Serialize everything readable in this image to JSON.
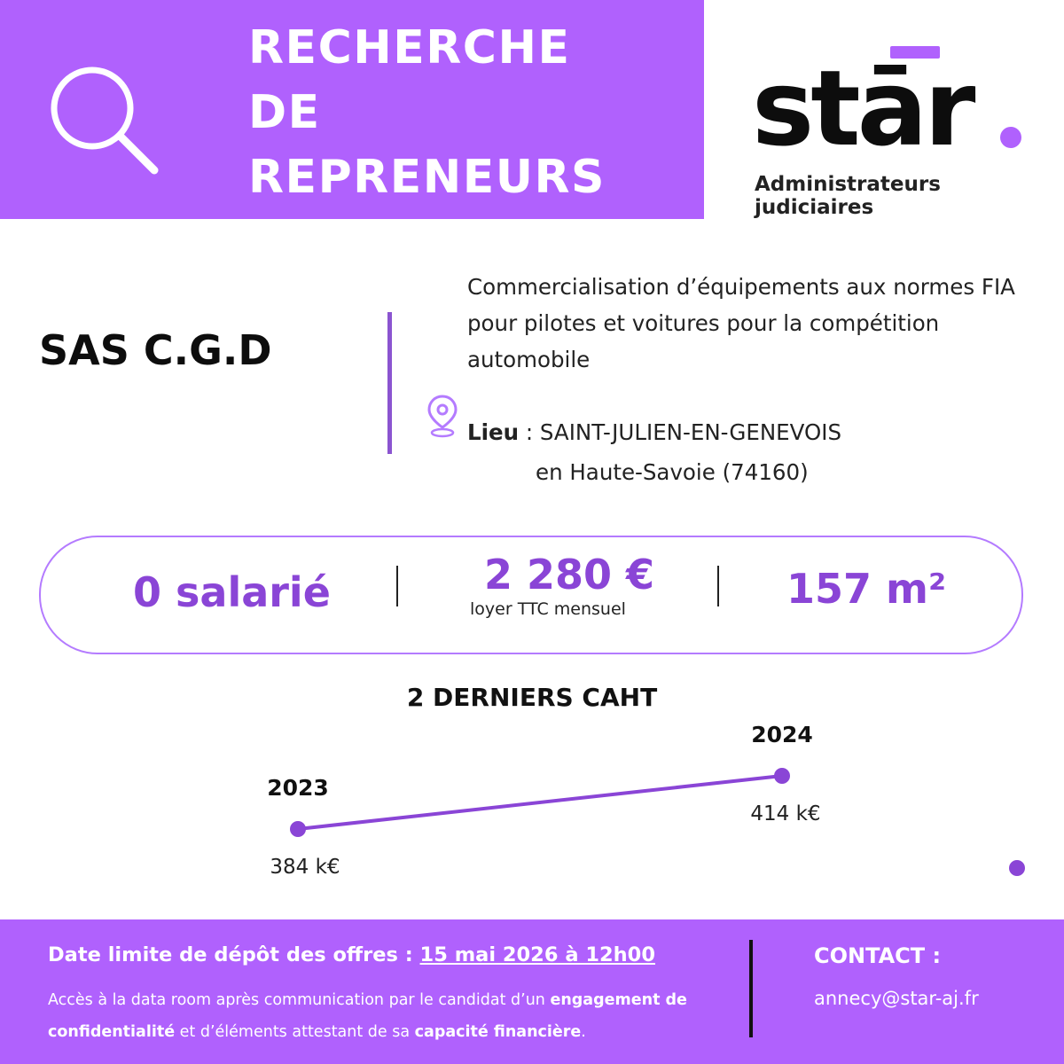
{
  "header": {
    "title_lines": [
      "RECHERCHE",
      "DE",
      "REPRENEURS"
    ],
    "icon": "search-icon"
  },
  "logo": {
    "word": "stār",
    "subtitle_lines": [
      "Administrateurs",
      "judiciaires"
    ],
    "accent": "#b061fd"
  },
  "company": {
    "name": "SAS C.G.D",
    "activity": "Commercialisation d’équipements aux normes FIA pour pilotes et voitures pour la compétition automobile",
    "location_label": "Lieu",
    "location_sep": " : ",
    "location_line1": "SAINT-JULIEN-EN-GENEVOIS",
    "location_line2": "en Haute-Savoie (74160)",
    "location_icon": "map-pin-icon"
  },
  "stats": {
    "employees": "0 salarié",
    "rent": "2 280 €",
    "rent_caption": "loyer TTC mensuel",
    "area": "157 m²"
  },
  "chart_data": {
    "type": "line",
    "title": "2 DERNIERS CAHT",
    "categories": [
      "2023",
      "2024"
    ],
    "values": [
      384,
      414
    ],
    "value_labels": [
      "384 k€",
      "414 k€"
    ],
    "color": "#8a45d6"
  },
  "footer": {
    "deadline_label": "Date limite de dépôt des offres : ",
    "deadline_date": "15 mai 2026 à 12h00",
    "access_part1": "Accès à la data room après communication par le candidat d’un ",
    "access_bold1": "engagement de confidentialité",
    "access_part2": " et d’éléments attestant de sa ",
    "access_bold2": "capacité financière",
    "access_part3": ".",
    "contact_title": "CONTACT :",
    "contact_email": "annecy@star-aj.fr"
  },
  "colors": {
    "band": "#b061fd",
    "accent_text": "#8a45d6",
    "pill_border": "#b47bff"
  }
}
